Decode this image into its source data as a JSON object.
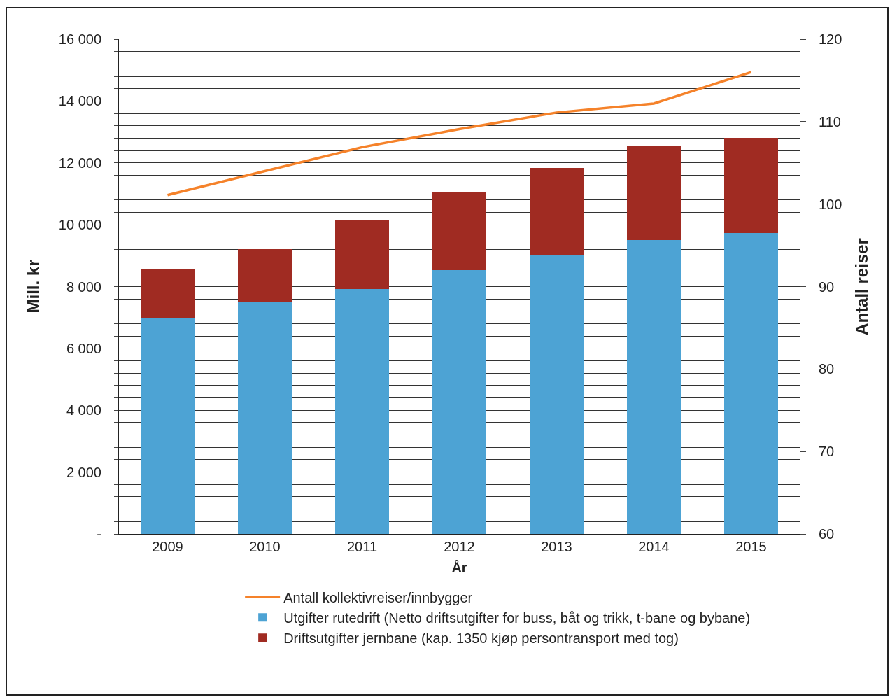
{
  "chart_data": {
    "type": "bar",
    "stacked": true,
    "xlabel": "År",
    "ylabel": "Mill. kr",
    "y2label": "Antall reiser",
    "categories": [
      "2009",
      "2010",
      "2011",
      "2012",
      "2013",
      "2014",
      "2015"
    ],
    "series": [
      {
        "name": "Utgifter rutedrift (Netto driftsutgifter for buss, båt og trikk, t-bane og bybane)",
        "color": "#4da3d4",
        "values": [
          6970,
          7510,
          7920,
          8530,
          9010,
          9500,
          9730
        ]
      },
      {
        "name": "Driftsutgifter jernbane (kap. 1350 kjøp persontransport med tog)",
        "color": "#a02b22",
        "values": [
          1610,
          1700,
          2220,
          2540,
          2830,
          3060,
          3080
        ]
      },
      {
        "name": "Antall kollektivreiser/innbygger",
        "type": "line",
        "axis": "y2",
        "color": "#f5822a",
        "values": [
          101.1,
          104,
          106.9,
          109.1,
          111.1,
          112.2,
          116.0
        ]
      }
    ],
    "ylim": [
      0,
      16000
    ],
    "yticks": [
      {
        "value": 0,
        "label": "-"
      },
      {
        "value": 400,
        "label": null
      },
      {
        "value": 800,
        "label": null
      },
      {
        "value": 1200,
        "label": null
      },
      {
        "value": 1600,
        "label": null
      },
      {
        "value": 2000,
        "label": "2 000"
      },
      {
        "value": 2400,
        "label": null
      },
      {
        "value": 2800,
        "label": null
      },
      {
        "value": 3200,
        "label": null
      },
      {
        "value": 3600,
        "label": null
      },
      {
        "value": 4000,
        "label": "4 000"
      },
      {
        "value": 4400,
        "label": null
      },
      {
        "value": 4800,
        "label": null
      },
      {
        "value": 5200,
        "label": null
      },
      {
        "value": 5600,
        "label": null
      },
      {
        "value": 6000,
        "label": "6 000"
      },
      {
        "value": 6400,
        "label": null
      },
      {
        "value": 6800,
        "label": null
      },
      {
        "value": 7200,
        "label": null
      },
      {
        "value": 7600,
        "label": null
      },
      {
        "value": 8000,
        "label": "8 000"
      },
      {
        "value": 8400,
        "label": null
      },
      {
        "value": 8800,
        "label": null
      },
      {
        "value": 9200,
        "label": null
      },
      {
        "value": 9600,
        "label": null
      },
      {
        "value": 10000,
        "label": "10 000"
      },
      {
        "value": 10400,
        "label": null
      },
      {
        "value": 10800,
        "label": null
      },
      {
        "value": 11200,
        "label": null
      },
      {
        "value": 11600,
        "label": null
      },
      {
        "value": 12000,
        "label": "12 000"
      },
      {
        "value": 12400,
        "label": null
      },
      {
        "value": 12800,
        "label": null
      },
      {
        "value": 13200,
        "label": null
      },
      {
        "value": 13600,
        "label": null
      },
      {
        "value": 14000,
        "label": "14 000"
      },
      {
        "value": 14400,
        "label": null
      },
      {
        "value": 14800,
        "label": null
      },
      {
        "value": 15200,
        "label": null
      },
      {
        "value": 15600,
        "label": null
      },
      {
        "value": 16000,
        "label": "16 000"
      }
    ],
    "y2lim": [
      60,
      120
    ],
    "y2ticks": [
      60,
      70,
      80,
      90,
      100,
      110,
      120
    ],
    "grid": "y",
    "legend": "bottom",
    "marker": "none",
    "line_style": "solid"
  }
}
